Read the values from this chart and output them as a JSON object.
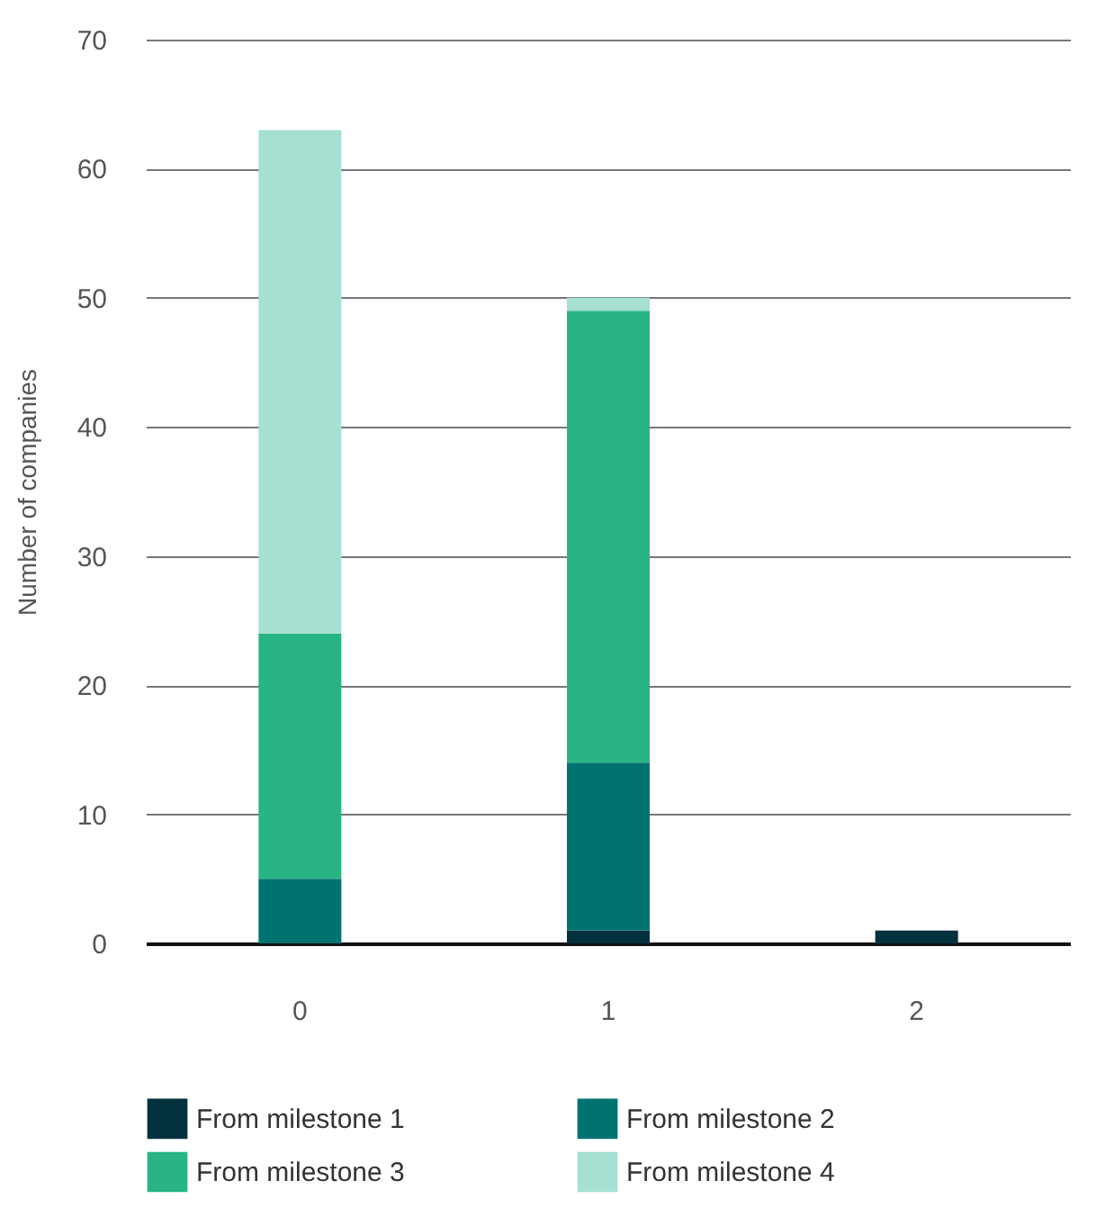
{
  "chart_data": {
    "type": "bar",
    "stacked": true,
    "ylabel": "Number of companies",
    "categories": [
      "0",
      "1",
      "2"
    ],
    "series": [
      {
        "name": "From milestone 1",
        "color": "#01323d",
        "values": [
          0,
          1,
          1
        ]
      },
      {
        "name": "From milestone 2",
        "color": "#007371",
        "values": [
          5,
          13,
          0
        ]
      },
      {
        "name": "From milestone 3",
        "color": "#29b484",
        "values": [
          19,
          35,
          0
        ]
      },
      {
        "name": "From milestone 4",
        "color": "#a5e0d2",
        "values": [
          39,
          1,
          0
        ]
      }
    ],
    "ylim": [
      0,
      70
    ],
    "yticks": [
      0,
      10,
      20,
      30,
      40,
      50,
      60,
      70
    ],
    "grid": "y",
    "legend": "bottom"
  }
}
